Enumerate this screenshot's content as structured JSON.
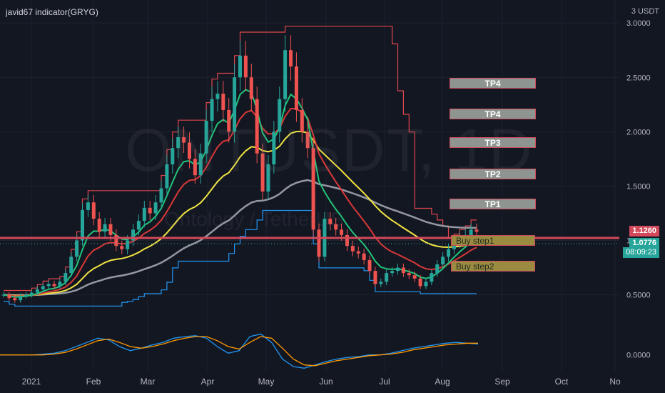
{
  "header": {
    "indicator_title": "javid67 indicator(GRYG)",
    "unit": "3 USDT"
  },
  "watermark": {
    "symbol": "ONTUSDT, 1D",
    "description": "Ontology / TetherUS"
  },
  "price_labels": {
    "resistance": "1.1260",
    "last": "1.0776",
    "countdown": "08:09:23"
  },
  "colors": {
    "background": "#131722",
    "up_candle": "#26a69a",
    "down_candle": "#ef5350",
    "resistance_line": "#e0474c",
    "support_line": "#2196f3",
    "ema_fast": "#22c47a",
    "ema_mid": "#d93838",
    "ema_slow": "#f0e442",
    "sma_long": "#9598a1",
    "osc_a": "#2196f3",
    "osc_b": "#ff9800",
    "last_price": "#26a69a"
  },
  "chart_data": [
    {
      "type": "candlestick",
      "title": "ONTUSDT, 1D",
      "x_ticks": [
        "2021",
        "Feb",
        "Mar",
        "Apr",
        "May",
        "Jun",
        "Jul",
        "Aug",
        "Sep",
        "Oct",
        "No"
      ],
      "y_ticks": [
        "0.5000",
        "1.0000",
        "1.5000",
        "2.0000",
        "2.5000",
        "3.0000"
      ],
      "ylim": [
        0.32,
        3.08
      ],
      "annotations": [
        {
          "label": "TP4",
          "price": 2.44
        },
        {
          "label": "TP4",
          "price": 2.16
        },
        {
          "label": "TP3",
          "price": 1.9
        },
        {
          "label": "TP2",
          "price": 1.61
        },
        {
          "label": "TP1",
          "price": 1.33
        },
        {
          "label": "Buy step1",
          "price": 1.0
        },
        {
          "label": "Buy step2",
          "price": 0.76
        }
      ],
      "close_series": [
        0.5,
        0.47,
        0.45,
        0.49,
        0.5,
        0.52,
        0.55,
        0.58,
        0.6,
        0.58,
        0.62,
        0.7,
        0.85,
        1.0,
        1.28,
        1.35,
        1.2,
        1.08,
        1.15,
        1.05,
        0.95,
        0.92,
        1.0,
        1.1,
        1.18,
        1.3,
        1.25,
        1.35,
        1.48,
        1.7,
        1.85,
        1.95,
        1.9,
        1.75,
        1.6,
        1.8,
        2.1,
        2.3,
        2.35,
        2.2,
        2.0,
        2.5,
        2.7,
        2.5,
        2.3,
        1.8,
        1.45,
        1.7,
        2.0,
        2.3,
        2.75,
        2.6,
        2.2,
        2.0,
        1.85,
        1.1,
        0.85,
        1.2,
        1.15,
        1.1,
        1.05,
        0.95,
        0.9,
        0.88,
        0.82,
        0.72,
        0.6,
        0.62,
        0.7,
        0.72,
        0.75,
        0.7,
        0.68,
        0.65,
        0.58,
        0.62,
        0.7,
        0.78,
        0.85,
        0.92,
        0.98,
        1.02,
        1.05,
        1.1,
        1.08
      ],
      "series": [
        {
          "name": "Resistance",
          "color": "#e0474c"
        },
        {
          "name": "Support",
          "color": "#2196f3"
        },
        {
          "name": "EMA fast",
          "color": "#22c47a"
        },
        {
          "name": "EMA mid",
          "color": "#d93838"
        },
        {
          "name": "EMA slow",
          "color": "#f0e442"
        },
        {
          "name": "SMA long",
          "color": "#9598a1"
        }
      ]
    },
    {
      "type": "line",
      "y_ticks": [
        "0.0000"
      ],
      "ylim": [
        -0.2,
        0.4
      ],
      "series": [
        {
          "values": [
            0.0,
            0.0,
            0.0,
            0.0,
            0.01,
            0.02,
            0.05,
            0.1,
            0.15,
            0.2,
            0.18,
            0.1,
            0.05,
            0.08,
            0.12,
            0.15,
            0.2,
            0.22,
            0.23,
            0.2,
            0.1,
            0.02,
            0.05,
            0.22,
            0.25,
            0.15,
            -0.05,
            -0.14,
            -0.16,
            -0.12,
            -0.08,
            -0.05,
            -0.03,
            -0.02,
            0.0,
            0.0,
            0.02,
            0.05,
            0.08,
            0.1,
            0.12,
            0.14,
            0.15,
            0.14,
            0.13
          ]
        },
        {
          "values": [
            0.0,
            0.0,
            0.0,
            0.0,
            0.0,
            0.01,
            0.03,
            0.07,
            0.12,
            0.17,
            0.19,
            0.15,
            0.1,
            0.08,
            0.1,
            0.13,
            0.17,
            0.2,
            0.22,
            0.22,
            0.17,
            0.1,
            0.07,
            0.15,
            0.22,
            0.2,
            0.08,
            -0.05,
            -0.12,
            -0.13,
            -0.1,
            -0.07,
            -0.05,
            -0.03,
            -0.01,
            0.0,
            0.01,
            0.03,
            0.06,
            0.08,
            0.1,
            0.12,
            0.13,
            0.14,
            0.14
          ]
        }
      ]
    }
  ]
}
